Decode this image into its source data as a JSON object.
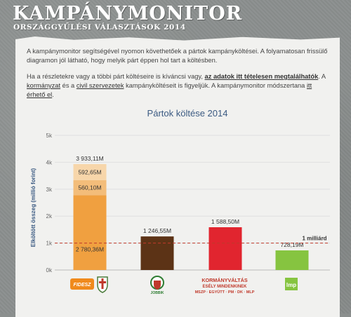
{
  "header": {
    "title": "KAMPÁNYMONITOR",
    "subtitle": "ORSZÁGGYŰLÉSI VÁLASZTÁSOK 2014"
  },
  "intro": {
    "p1": "A kampánymonitor segítségével nyomon követhetőek a pártok kampányköltései. A folyamatosan frissülő diagramon jól látható, hogy melyik párt éppen hol tart a költésben.",
    "p2_a": "Ha a részletekre vagy a többi párt költéseire is kíváncsi vagy, ",
    "p2_link1": "az adatok itt tételesen megtalálhatók",
    "p2_b": ". A ",
    "p2_link2": "kormányzat",
    "p2_c": " és a ",
    "p2_link3": "civil szervezetek",
    "p2_d": " kampányköltéseit is figyeljük. A kampánymonitor módszertana ",
    "p2_link4": "itt érhető el",
    "p2_e": "."
  },
  "chart_data": {
    "type": "bar",
    "title": "Pártok költése 2014",
    "ylabel": "Elköltött összeg (millió forint)",
    "ylim": [
      0,
      5000
    ],
    "yticks": [
      0,
      1000,
      2000,
      3000,
      4000,
      5000
    ],
    "ytick_labels": [
      "0k",
      "1k",
      "2k",
      "3k",
      "4k",
      "5k"
    ],
    "reference_line": {
      "value": 1000,
      "label": "1 milliárd",
      "color": "#c0392b"
    },
    "bars": [
      {
        "party_logo": "fidesz-kdnp-logo",
        "logo_text": [
          "FIDESZ"
        ],
        "total_label": "3 933,11M",
        "segments": [
          {
            "value": 2780.36,
            "label": "2 780,36M",
            "color": "#f0a040"
          },
          {
            "value": 560.1,
            "label": "560,10M",
            "color": "#f3bd7a"
          },
          {
            "value": 592.65,
            "label": "592,65M",
            "color": "#f7d6aa"
          }
        ]
      },
      {
        "party_logo": "jobbik-logo",
        "logo_text": [
          "JOBBIK"
        ],
        "total_label": "1 246,55M",
        "segments": [
          {
            "value": 1246.55,
            "label": "",
            "color": "#5c3316"
          }
        ]
      },
      {
        "party_logo": "kormanyvaltas-logo",
        "logo_text": [
          "KORMÁNYVÁLTÁS",
          "ESÉLY MINDENKINEK",
          "MSZP · EGYÜTT · PM · DK · MLP"
        ],
        "total_label": "1 588,50M",
        "segments": [
          {
            "value": 1588.5,
            "label": "",
            "color": "#e1252f"
          }
        ]
      },
      {
        "party_logo": "lmp-logo",
        "logo_text": [
          "lmp"
        ],
        "total_label": "728,19M",
        "segments": [
          {
            "value": 728.19,
            "label": "",
            "color": "#86c440"
          }
        ]
      }
    ]
  }
}
